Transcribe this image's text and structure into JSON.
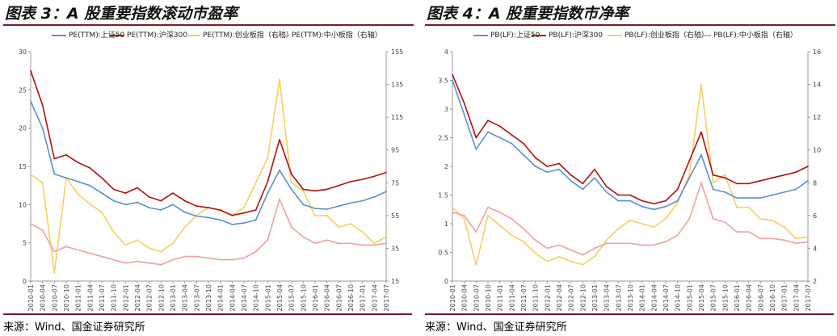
{
  "charts": [
    {
      "title": "图表 3：A 股重要指数滚动市盈率",
      "source": "来源：Wind、国金证券研究所"
    },
    {
      "title": "图表 4：A 股重要指数市净率",
      "source": "来源：Wind、国金证券研究所"
    }
  ],
  "colors": {
    "blue": "#5b8fd0",
    "red": "#b01010",
    "yellow": "#f4cf63",
    "pink": "#f0a0a0",
    "accent": "#7a1a2b"
  },
  "chart_data": [
    {
      "type": "line",
      "x": [
        "2010-01",
        "2010-04",
        "2010-07",
        "2010-10",
        "2011-01",
        "2011-04",
        "2011-07",
        "2011-10",
        "2012-01",
        "2012-04",
        "2012-07",
        "2012-10",
        "2013-01",
        "2013-04",
        "2013-07",
        "2013-10",
        "2014-01",
        "2014-04",
        "2014-07",
        "2014-10",
        "2015-01",
        "2015-04",
        "2015-07",
        "2015-10",
        "2016-01",
        "2016-04",
        "2016-07",
        "2016-10",
        "2017-01",
        "2017-04",
        "2017-07"
      ],
      "yleft_ticks": [
        "0",
        "5",
        "10",
        "15",
        "20",
        "25",
        "30"
      ],
      "yright_ticks": [
        "15",
        "35",
        "55",
        "75",
        "95",
        "115",
        "135",
        "155"
      ],
      "ylim_left": [
        0,
        30
      ],
      "ylim_right": [
        15,
        155
      ],
      "series": [
        {
          "name": "PE(TTM):上证50",
          "axis": "left",
          "color": "#5b8fd0",
          "values": [
            23.5,
            20.0,
            14.0,
            13.5,
            13.0,
            12.5,
            11.5,
            10.5,
            10.0,
            10.3,
            9.6,
            9.3,
            10.0,
            9.0,
            8.5,
            8.3,
            8.0,
            7.4,
            7.6,
            8.0,
            11.5,
            14.5,
            12.0,
            10.0,
            9.5,
            9.4,
            9.8,
            10.2,
            10.5,
            11.0,
            11.7
          ]
        },
        {
          "name": "PE(TTM):沪深300",
          "axis": "left",
          "color": "#b01010",
          "values": [
            27.5,
            23.0,
            16.0,
            16.5,
            15.5,
            14.8,
            13.5,
            12.0,
            11.5,
            12.2,
            11.0,
            10.5,
            11.5,
            10.5,
            9.8,
            9.6,
            9.3,
            8.6,
            8.9,
            9.3,
            13.0,
            18.5,
            14.0,
            12.0,
            11.8,
            12.0,
            12.5,
            13.0,
            13.3,
            13.7,
            14.2
          ]
        },
        {
          "name": "PE(TTM):创业板指（右轴）",
          "axis": "right",
          "color": "#f4cf63",
          "values": [
            80,
            75,
            20,
            78,
            68,
            62,
            57,
            45,
            37,
            40,
            35,
            33,
            38,
            48,
            55,
            60,
            58,
            55,
            60,
            75,
            90,
            138,
            75,
            70,
            55,
            55,
            48,
            50,
            45,
            38,
            42
          ]
        },
        {
          "name": "PE(TTM):中小板指（右轴）",
          "axis": "right",
          "color": "#f0a0a0",
          "values": [
            50,
            46,
            33,
            36,
            34,
            32,
            30,
            28,
            26,
            27,
            26,
            25,
            28,
            30,
            30,
            29,
            28,
            28,
            29,
            33,
            40,
            65,
            48,
            42,
            38,
            40,
            38,
            38,
            37,
            37,
            38
          ]
        }
      ]
    },
    {
      "type": "line",
      "x": [
        "2010-01",
        "2010-04",
        "2010-07",
        "2010-10",
        "2011-01",
        "2011-04",
        "2011-07",
        "2011-10",
        "2012-01",
        "2012-04",
        "2012-07",
        "2012-10",
        "2013-01",
        "2013-04",
        "2013-07",
        "2013-10",
        "2014-01",
        "2014-04",
        "2014-07",
        "2014-10",
        "2015-01",
        "2015-04",
        "2015-07",
        "2015-10",
        "2016-01",
        "2016-04",
        "2016-07",
        "2016-10",
        "2017-01",
        "2017-04",
        "2017-07"
      ],
      "yleft_ticks": [
        "0",
        "0.5",
        "1",
        "1.5",
        "2",
        "2.5",
        "3",
        "3.5",
        "4"
      ],
      "yright_ticks": [
        "2",
        "4",
        "6",
        "8",
        "10",
        "12",
        "14",
        "16"
      ],
      "ylim_left": [
        0,
        4
      ],
      "ylim_right": [
        2,
        16
      ],
      "series": [
        {
          "name": "PB(LF):上证50",
          "axis": "left",
          "color": "#5b8fd0",
          "values": [
            3.5,
            2.9,
            2.3,
            2.6,
            2.5,
            2.4,
            2.2,
            2.0,
            1.9,
            1.95,
            1.75,
            1.6,
            1.8,
            1.55,
            1.4,
            1.4,
            1.3,
            1.25,
            1.3,
            1.4,
            1.8,
            2.2,
            1.6,
            1.55,
            1.45,
            1.45,
            1.45,
            1.5,
            1.55,
            1.6,
            1.75
          ]
        },
        {
          "name": "PB(LF):沪深300",
          "axis": "left",
          "color": "#b01010",
          "values": [
            3.6,
            3.1,
            2.5,
            2.8,
            2.7,
            2.55,
            2.4,
            2.15,
            2.0,
            2.05,
            1.85,
            1.7,
            1.95,
            1.65,
            1.5,
            1.5,
            1.4,
            1.35,
            1.4,
            1.6,
            2.1,
            2.6,
            1.85,
            1.8,
            1.7,
            1.7,
            1.75,
            1.8,
            1.85,
            1.9,
            2.0
          ]
        },
        {
          "name": "PB(LF):创业板指（右轴）",
          "axis": "right",
          "color": "#f4cf63",
          "values": [
            6.5,
            5.8,
            3.0,
            6.0,
            5.4,
            4.8,
            4.4,
            3.7,
            3.2,
            3.5,
            3.2,
            3.0,
            3.5,
            4.5,
            5.2,
            5.7,
            5.5,
            5.3,
            5.8,
            6.8,
            8.5,
            14.0,
            8.0,
            8.5,
            6.5,
            6.5,
            5.8,
            5.7,
            5.3,
            4.6,
            4.7
          ]
        },
        {
          "name": "PB(LF):中小板指（右轴）",
          "axis": "right",
          "color": "#f0a0a0",
          "values": [
            6.2,
            6.0,
            5.0,
            6.5,
            6.2,
            5.8,
            5.2,
            4.5,
            4.0,
            4.2,
            3.9,
            3.6,
            4.0,
            4.3,
            4.3,
            4.3,
            4.2,
            4.2,
            4.4,
            4.8,
            5.8,
            8.0,
            5.8,
            5.6,
            5.0,
            5.0,
            4.6,
            4.6,
            4.5,
            4.3,
            4.4
          ]
        }
      ]
    }
  ]
}
